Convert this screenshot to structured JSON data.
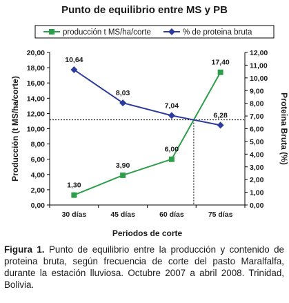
{
  "chart_data": {
    "type": "line",
    "title": "Punto de equilibrio entre MS y PB",
    "xlabel": "Periodos de corte",
    "ylabel_left": "Producción (t MS/ha/corte)",
    "ylabel_right": "Proteina Bruta (%)",
    "categories": [
      "30 días",
      "45 días",
      "60 días",
      "75 días"
    ],
    "y_left_range": [
      0,
      20
    ],
    "y_left_ticks": [
      "0,00",
      "2,00",
      "4,00",
      "6,00",
      "8,00",
      "10,00",
      "12,00",
      "14,00",
      "16,00",
      "18,00",
      "20,00"
    ],
    "y_right_range": [
      0,
      12
    ],
    "y_right_ticks": [
      "0,00",
      "1,00",
      "2,00",
      "3,00",
      "4,00",
      "5,00",
      "6,00",
      "7,00",
      "8,00",
      "9,00",
      "10,00",
      "11,00",
      "12,00"
    ],
    "series": [
      {
        "name": "producción t MS/ha/corte",
        "axis": "left",
        "color": "#2e9e4a",
        "marker": "square",
        "values": [
          1.3,
          3.9,
          6.0,
          17.4
        ],
        "labels": [
          "1,30",
          "3,90",
          "6,00",
          "17,40"
        ]
      },
      {
        "name": "% de proteina bruta",
        "axis": "right",
        "color": "#2d3c9c",
        "marker": "diamond",
        "values": [
          10.64,
          8.03,
          7.04,
          6.28
        ],
        "labels": [
          "10,64",
          "8,03",
          "7,04",
          "6,28"
        ]
      }
    ],
    "legend_position": "top",
    "grid": false
  },
  "caption": {
    "label": "Figura 1.",
    "text": " Punto de equilibrio entre la producción y contenido de proteina bruta, según frecuencia de corte del pasto Maralfalfa, durante la estación lluviosa. Octubre 2007 a abril 2008. Trinidad, Bolivia."
  }
}
